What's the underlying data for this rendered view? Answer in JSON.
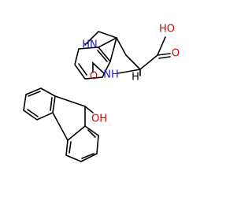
{
  "molecule": {
    "labels": [
      "HN",
      "HO",
      "O",
      "NH",
      "H",
      "O",
      "OH"
    ]
  }
}
